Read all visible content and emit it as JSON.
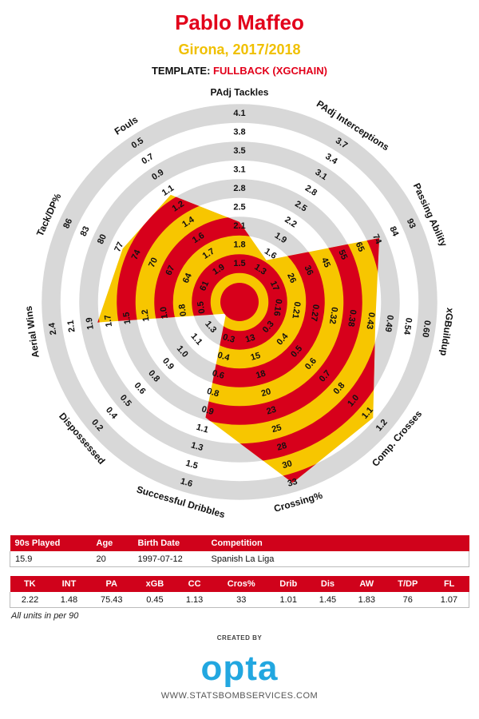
{
  "chart_data": {
    "type": "radar",
    "title": "Pablo Maffeo",
    "subtitle": "Girona, 2017/2018",
    "template_label": "TEMPLATE:",
    "template": "FULLBACK (XGCHAIN)",
    "colors": [
      "#d7001b",
      "#f7c600"
    ],
    "ring_colors": [
      "#d8d8d8",
      "#ffffff"
    ],
    "axes": [
      {
        "name": "PAdj Tackles",
        "abbr": "TK",
        "value": 2.22,
        "ticks": [
          1.5,
          1.8,
          2.1,
          2.5,
          2.8,
          3.1,
          3.5,
          3.8,
          4.1
        ]
      },
      {
        "name": "PAdj Interceptions",
        "abbr": "INT",
        "value": 1.48,
        "ticks": [
          1.3,
          1.6,
          1.9,
          2.2,
          2.5,
          2.8,
          3.1,
          3.4,
          3.7
        ]
      },
      {
        "name": "Passing Ability",
        "abbr": "PA",
        "value": 75.43,
        "ticks": [
          17,
          26,
          36,
          45,
          55,
          65,
          74,
          84,
          93
        ]
      },
      {
        "name": "xGBuildup",
        "abbr": "xGB",
        "value": 0.45,
        "ticks": [
          0.16,
          0.21,
          0.27,
          0.32,
          0.38,
          0.43,
          0.49,
          0.54,
          {
            "value": 0.6,
            "label": "0.60"
          }
        ]
      },
      {
        "name": "Comp. Crosses",
        "abbr": "CC",
        "value": 1.13,
        "ticks": [
          0.3,
          0.4,
          0.5,
          0.6,
          0.7,
          0.8,
          {
            "value": 1,
            "label": "1.0"
          },
          1.1,
          1.2
        ]
      },
      {
        "name": "Crossing%",
        "abbr": "Cros%",
        "value": 33,
        "ticks": [
          13,
          15,
          18,
          20,
          23,
          25,
          28,
          30,
          33
        ]
      },
      {
        "name": "Successful Dribbles",
        "abbr": "Drib",
        "value": 1.01,
        "ticks": [
          0.3,
          0.4,
          0.6,
          0.8,
          0.9,
          1.1,
          1.3,
          1.5,
          1.6
        ]
      },
      {
        "name": "Dispossessed",
        "abbr": "Dis",
        "value": 1.45,
        "ticks": [
          1.3,
          1.1,
          {
            "value": 1,
            "label": "1.0"
          },
          0.9,
          0.8,
          0.6,
          0.5,
          0.4,
          0.2
        ]
      },
      {
        "name": "Aerial Wins",
        "abbr": "AW",
        "value": 1.83,
        "ticks": [
          0.5,
          0.8,
          {
            "value": 1,
            "label": "1.0"
          },
          1.2,
          1.5,
          1.7,
          1.9,
          2.1,
          2.4
        ]
      },
      {
        "name": "Tack/DP%",
        "abbr": "T/DP",
        "value": 76,
        "ticks": [
          61,
          64,
          67,
          70,
          74,
          77,
          80,
          83,
          86
        ]
      },
      {
        "name": "Fouls",
        "abbr": "FL",
        "value": 1.07,
        "ticks": [
          1.9,
          1.7,
          1.6,
          1.4,
          1.2,
          1.1,
          0.9,
          0.7,
          0.5
        ]
      }
    ]
  },
  "info": {
    "columns": [
      "90s Played",
      "Age",
      "Birth Date",
      "Competition"
    ],
    "row": [
      15.9,
      20,
      "1997-07-12",
      "Spanish La Liga"
    ]
  },
  "footnote": "All units in per 90",
  "created_by": "CREATED BY",
  "brand": "opta",
  "website": "WWW.STATSBOMBSERVICES.COM"
}
